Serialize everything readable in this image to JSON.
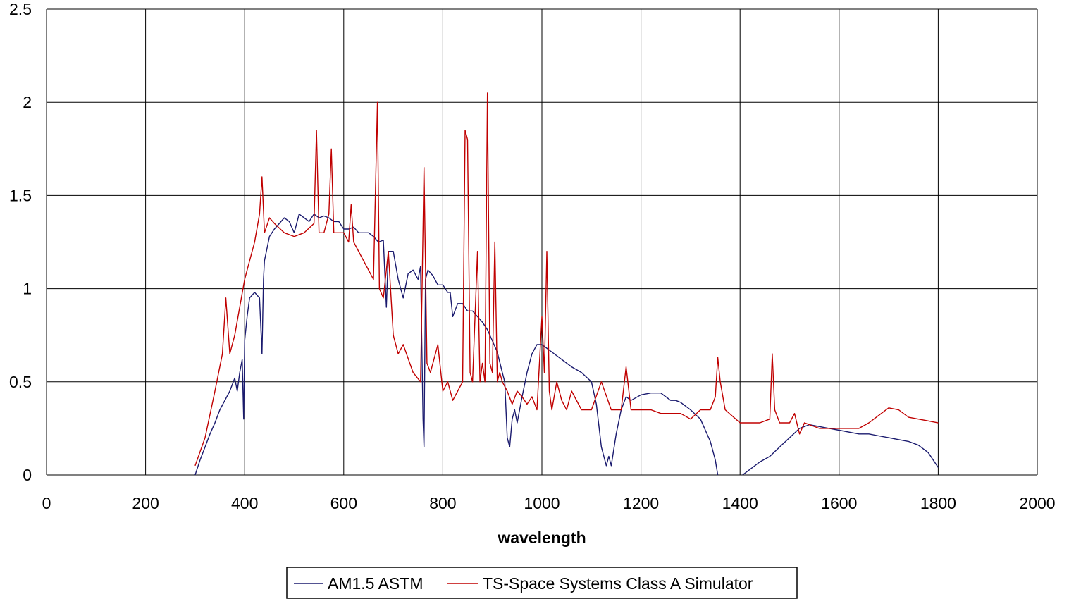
{
  "chart_data": {
    "type": "line",
    "title": "",
    "xlabel": "wavelength",
    "ylabel": "",
    "xlim": [
      0,
      2000
    ],
    "ylim": [
      0,
      2.5
    ],
    "x_ticks": [
      "0",
      "200",
      "400",
      "600",
      "800",
      "1000",
      "1200",
      "1400",
      "1600",
      "1800",
      "2000"
    ],
    "y_ticks": [
      "0",
      "0.5",
      "1",
      "1.5",
      "2",
      "2.5"
    ],
    "grid": true,
    "legend_position": "bottom",
    "series": [
      {
        "name": "AM1.5 ASTM",
        "color": "#1a1a6e",
        "x": [
          300,
          310,
          320,
          330,
          340,
          350,
          360,
          370,
          380,
          385,
          390,
          395,
          398,
          400,
          405,
          410,
          420,
          430,
          435,
          438,
          440,
          450,
          460,
          470,
          480,
          490,
          500,
          510,
          520,
          530,
          540,
          550,
          560,
          570,
          580,
          590,
          600,
          610,
          620,
          630,
          640,
          650,
          660,
          670,
          680,
          686,
          690,
          700,
          710,
          720,
          730,
          740,
          750,
          755,
          760,
          762,
          765,
          770,
          780,
          790,
          800,
          810,
          815,
          820,
          830,
          840,
          850,
          860,
          870,
          880,
          890,
          900,
          910,
          920,
          925,
          930,
          935,
          940,
          945,
          950,
          960,
          970,
          980,
          990,
          1000,
          1010,
          1020,
          1040,
          1060,
          1080,
          1100,
          1110,
          1120,
          1130,
          1135,
          1140,
          1150,
          1160,
          1170,
          1180,
          1200,
          1220,
          1240,
          1260,
          1270,
          1280,
          1300,
          1320,
          1340,
          1350,
          1355,
          1400,
          1405,
          1420,
          1440,
          1460,
          1480,
          1500,
          1520,
          1540,
          1560,
          1580,
          1600,
          1620,
          1640,
          1660,
          1680,
          1700,
          1720,
          1740,
          1760,
          1780,
          1800
        ],
        "values": [
          0.0,
          0.08,
          0.15,
          0.22,
          0.28,
          0.35,
          0.4,
          0.45,
          0.52,
          0.45,
          0.55,
          0.62,
          0.3,
          0.72,
          0.85,
          0.95,
          0.98,
          0.95,
          0.65,
          1.05,
          1.15,
          1.28,
          1.32,
          1.35,
          1.38,
          1.36,
          1.3,
          1.4,
          1.38,
          1.36,
          1.4,
          1.38,
          1.39,
          1.38,
          1.36,
          1.36,
          1.32,
          1.32,
          1.33,
          1.3,
          1.3,
          1.3,
          1.28,
          1.25,
          1.26,
          0.9,
          1.2,
          1.2,
          1.05,
          0.95,
          1.08,
          1.1,
          1.05,
          1.12,
          0.3,
          0.15,
          1.05,
          1.1,
          1.07,
          1.02,
          1.02,
          0.98,
          0.98,
          0.85,
          0.92,
          0.92,
          0.88,
          0.88,
          0.85,
          0.82,
          0.78,
          0.72,
          0.66,
          0.55,
          0.5,
          0.2,
          0.15,
          0.3,
          0.35,
          0.28,
          0.42,
          0.55,
          0.65,
          0.7,
          0.7,
          0.68,
          0.66,
          0.62,
          0.58,
          0.55,
          0.5,
          0.38,
          0.15,
          0.05,
          0.1,
          0.05,
          0.22,
          0.35,
          0.42,
          0.4,
          0.43,
          0.44,
          0.44,
          0.4,
          0.4,
          0.39,
          0.35,
          0.3,
          0.18,
          0.08,
          0.0,
          null,
          0.0,
          0.03,
          0.07,
          0.1,
          0.15,
          0.2,
          0.25,
          0.27,
          0.26,
          0.25,
          0.24,
          0.23,
          0.22,
          0.22,
          0.21,
          0.2,
          0.19,
          0.18,
          0.16,
          0.12,
          0.04
        ]
      },
      {
        "name": "TS-Space Systems Class A Simulator",
        "color": "#c00000",
        "x": [
          300,
          320,
          340,
          355,
          362,
          366,
          370,
          380,
          400,
          420,
          430,
          435,
          440,
          450,
          460,
          480,
          500,
          520,
          540,
          545,
          550,
          560,
          570,
          575,
          580,
          600,
          610,
          615,
          620,
          640,
          660,
          668,
          672,
          680,
          690,
          700,
          710,
          720,
          740,
          755,
          762,
          768,
          775,
          790,
          800,
          810,
          820,
          830,
          840,
          845,
          850,
          855,
          860,
          870,
          875,
          880,
          885,
          890,
          895,
          900,
          905,
          910,
          915,
          920,
          930,
          940,
          950,
          960,
          970,
          980,
          990,
          1000,
          1005,
          1010,
          1015,
          1020,
          1030,
          1040,
          1050,
          1060,
          1080,
          1100,
          1120,
          1140,
          1160,
          1170,
          1180,
          1200,
          1220,
          1240,
          1260,
          1280,
          1300,
          1320,
          1340,
          1350,
          1355,
          1360,
          1370,
          1400,
          1420,
          1440,
          1460,
          1465,
          1470,
          1480,
          1500,
          1510,
          1520,
          1530,
          1560,
          1600,
          1640,
          1660,
          1680,
          1700,
          1720,
          1740,
          1760,
          1780,
          1800
        ],
        "values": [
          0.05,
          0.2,
          0.45,
          0.65,
          0.95,
          0.8,
          0.65,
          0.75,
          1.05,
          1.25,
          1.4,
          1.6,
          1.3,
          1.38,
          1.35,
          1.3,
          1.28,
          1.3,
          1.35,
          1.85,
          1.3,
          1.3,
          1.4,
          1.75,
          1.3,
          1.3,
          1.25,
          1.45,
          1.25,
          1.15,
          1.05,
          2.0,
          1.0,
          0.95,
          1.2,
          0.75,
          0.65,
          0.7,
          0.55,
          0.5,
          1.65,
          0.6,
          0.55,
          0.7,
          0.45,
          0.5,
          0.4,
          0.45,
          0.5,
          1.85,
          1.8,
          0.55,
          0.5,
          1.2,
          0.5,
          0.6,
          0.5,
          2.05,
          0.6,
          0.55,
          1.25,
          0.5,
          0.55,
          0.5,
          0.45,
          0.38,
          0.45,
          0.42,
          0.38,
          0.42,
          0.35,
          0.85,
          0.55,
          1.2,
          0.45,
          0.35,
          0.5,
          0.4,
          0.35,
          0.45,
          0.35,
          0.35,
          0.5,
          0.35,
          0.35,
          0.58,
          0.35,
          0.35,
          0.35,
          0.33,
          0.33,
          0.33,
          0.3,
          0.35,
          0.35,
          0.42,
          0.63,
          0.5,
          0.35,
          0.28,
          0.28,
          0.28,
          0.3,
          0.65,
          0.35,
          0.28,
          0.28,
          0.33,
          0.22,
          0.28,
          0.25,
          0.25,
          0.25,
          0.28,
          0.32,
          0.36,
          0.35,
          0.31,
          0.3,
          0.29,
          0.28
        ]
      }
    ]
  }
}
